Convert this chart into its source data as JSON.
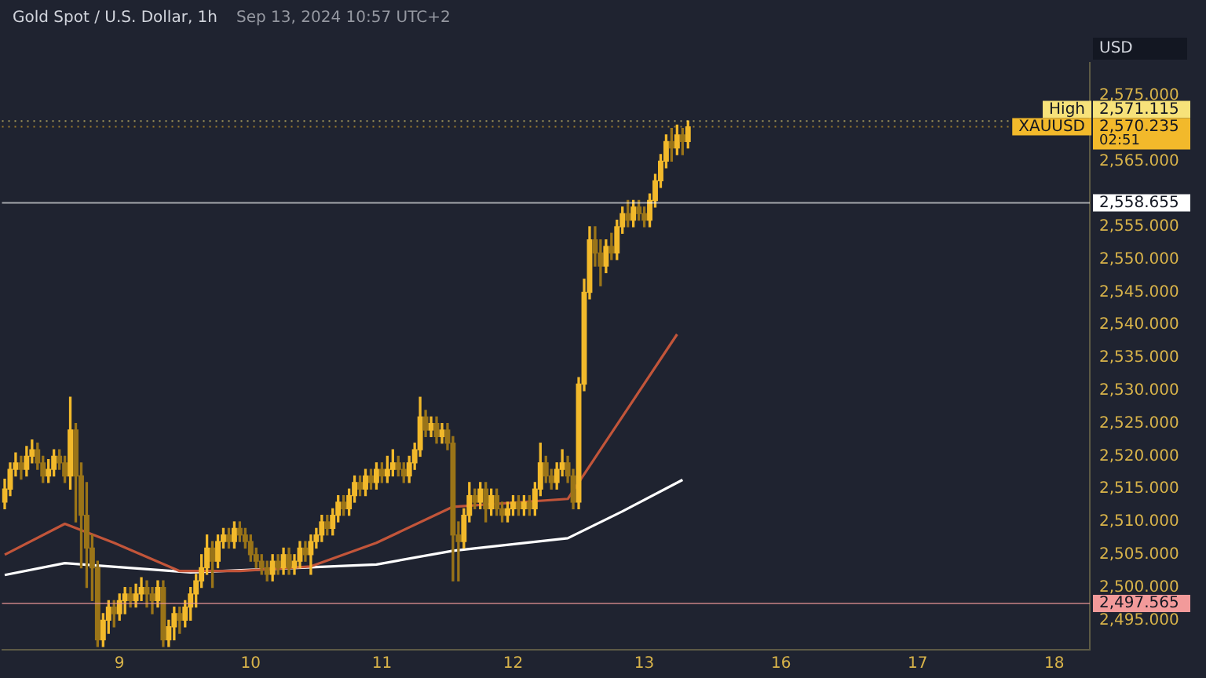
{
  "chart_data": {
    "type": "candlestick",
    "title": "Gold Spot / U.S. Dollar, 1h",
    "subtitle": "Sep 13, 2024 10:57 UTC+2",
    "ylabel": "USD",
    "colors": [
      "#f2b92b",
      "#f2b92b",
      "#f2b92b",
      "#9a7418",
      "#f2b92b",
      "#f2b92b",
      "#9a7418",
      "#9a7418",
      "#f2b92b",
      "#f2b92b",
      "#9a7418",
      "#9a7418",
      "#f2b92b",
      "#9a7418",
      "#9a7418",
      "#9a7418",
      "#9a7418",
      "#9a7418",
      "#f2b92b",
      "#f2b92b",
      "#9a7418",
      "#f2b92b",
      "#f2b92b",
      "#9a7418",
      "#f2b92b",
      "#f2b92b",
      "#9a7418",
      "#9a7418",
      "#f2b92b",
      "#9a7418",
      "#f2b92b",
      "#f2b92b",
      "#9a7418",
      "#f2b92b",
      "#f2b92b",
      "#f2b92b",
      "#f2b92b",
      "#f2b92b",
      "#9a7418",
      "#f2b92b",
      "#f2b92b",
      "#9a7418",
      "#f2b92b",
      "#9a7418",
      "#9a7418",
      "#9a7418",
      "#9a7418",
      "#9a7418",
      "#9a7418",
      "#f2b92b",
      "#9a7418",
      "#f2b92b",
      "#9a7418",
      "#f2b92b",
      "#f2b92b",
      "#9a7418",
      "#f2b92b",
      "#f2b92b",
      "#f2b92b",
      "#9a7418",
      "#f2b92b",
      "#f2b92b",
      "#9a7418",
      "#f2b92b",
      "#f2b92b",
      "#9a7418",
      "#f2b92b",
      "#9a7418",
      "#f2b92b",
      "#9a7418",
      "#f2b92b",
      "#f2b92b",
      "#9a7418",
      "#9a7418",
      "#f2b92b",
      "#f2b92b",
      "#f2b92b",
      "#9a7418",
      "#f2b92b",
      "#9a7418",
      "#f2b92b",
      "#9a7418",
      "#9a7418",
      "#9a7418",
      "#f2b92b",
      "#f2b92b",
      "#9a7418",
      "#f2b92b",
      "#9a7418",
      "#f2b92b",
      "#9a7418",
      "#9a7418",
      "#f2b92b",
      "#f2b92b",
      "#9a7418",
      "#f2b92b",
      "#9a7418",
      "#f2b92b",
      "#f2b92b",
      "#9a7418",
      "#9a7418",
      "#f2b92b",
      "#f2b92b",
      "#9a7418",
      "#9a7418",
      "#f2b92b",
      "#f2b92b",
      "#f2b92b",
      "#9a7418",
      "#9a7418",
      "#f2b92b",
      "#9a7418",
      "#f2b92b",
      "#f2b92b",
      "#9a7418",
      "#f2b92b",
      "#9a7418",
      "#9a7418",
      "#f2b92b",
      "#f2b92b",
      "#f2b92b",
      "#f2b92b",
      "#9a7418",
      "#f2b92b",
      "#9a7418",
      "#f2b92b",
      null,
      null,
      null,
      null,
      null,
      null,
      null,
      null,
      null,
      null,
      null,
      null,
      null,
      null,
      null,
      null,
      null,
      null,
      null,
      null,
      null,
      null,
      null,
      null,
      null,
      null,
      null,
      null,
      null,
      null,
      null,
      null,
      null,
      null,
      null,
      null,
      null,
      null,
      null,
      null,
      null,
      null,
      null,
      null,
      null,
      null,
      null,
      null,
      null,
      null,
      null,
      null,
      null,
      null,
      null,
      null,
      null,
      null,
      null,
      null,
      null,
      null,
      null,
      null,
      null,
      null,
      null,
      null,
      null,
      null,
      null,
      null,
      null
    ],
    "categories": [
      null,
      null,
      null,
      null,
      null,
      null,
      null,
      null,
      null,
      null,
      null,
      null,
      null,
      null,
      null,
      null,
      null,
      null,
      null,
      null,
      null,
      "9",
      null,
      null,
      null,
      null,
      null,
      null,
      null,
      null,
      null,
      null,
      null,
      null,
      null,
      null,
      null,
      null,
      null,
      null,
      null,
      null,
      null,
      null,
      null,
      "10",
      null,
      null,
      null,
      null,
      null,
      null,
      null,
      null,
      null,
      null,
      null,
      null,
      null,
      null,
      null,
      null,
      null,
      null,
      null,
      null,
      null,
      null,
      null,
      "11",
      null,
      null,
      null,
      null,
      null,
      null,
      null,
      null,
      null,
      null,
      null,
      null,
      null,
      null,
      null,
      null,
      null,
      null,
      null,
      null,
      null,
      null,
      null,
      "12",
      null,
      null,
      null,
      null,
      null,
      null,
      null,
      null,
      null,
      null,
      null,
      null,
      null,
      null,
      null,
      null,
      null,
      null,
      null,
      null,
      null,
      null,
      null,
      "13",
      null,
      null,
      null,
      null,
      null,
      null,
      null,
      null,
      null,
      null,
      null,
      null,
      null,
      null,
      null,
      null,
      null,
      null,
      null,
      null,
      null,
      null,
      null,
      null,
      "16",
      null,
      null,
      null,
      null,
      null,
      null,
      null,
      null,
      null,
      null,
      null,
      null,
      null,
      null,
      null,
      null,
      null,
      null,
      null,
      null,
      null,
      null,
      null,
      null,
      "17",
      null,
      null,
      null,
      null,
      null,
      null,
      null,
      null,
      null,
      null,
      null,
      null,
      null,
      null,
      null,
      null,
      null,
      null,
      null,
      null,
      null,
      null,
      null,
      null,
      "18",
      null,
      null,
      null,
      null,
      null,
      null
    ],
    "ohlc": [
      [
        2513,
        2516.5,
        2512,
        2515
      ],
      [
        2515,
        2519,
        2514,
        2518
      ],
      [
        2518,
        2520.5,
        2517,
        2519
      ],
      [
        2519,
        2520,
        2516.5,
        2518
      ],
      [
        2518,
        2521.5,
        2517,
        2520
      ],
      [
        2520,
        2522.5,
        2519,
        2521
      ],
      [
        2521,
        2522,
        2518,
        2519
      ],
      [
        2519,
        2520,
        2516,
        2517
      ],
      [
        2517,
        2519.5,
        2516,
        2518
      ],
      [
        2518,
        2521,
        2517,
        2520
      ],
      [
        2520,
        2521,
        2518,
        2519
      ],
      [
        2519,
        2520,
        2516,
        2517
      ],
      [
        2517,
        2529,
        2515,
        2524
      ],
      [
        2524,
        2525,
        2510,
        2517
      ],
      [
        2517,
        2519,
        2503,
        2511
      ],
      [
        2511,
        2516,
        2500,
        2506
      ],
      [
        2506,
        2508,
        2498,
        2503
      ],
      [
        2503,
        2504,
        2491,
        2492
      ],
      [
        2492,
        2496,
        2491,
        2495
      ],
      [
        2495,
        2498,
        2493,
        2497
      ],
      [
        2497,
        2498,
        2494,
        2496
      ],
      [
        2496,
        2499,
        2495,
        2498
      ],
      [
        2498,
        2500,
        2496,
        2499
      ],
      [
        2499,
        2500,
        2497,
        2498
      ],
      [
        2498,
        2500.5,
        2497,
        2499
      ],
      [
        2499,
        2501.5,
        2498,
        2500
      ],
      [
        2500,
        2501,
        2497,
        2499
      ],
      [
        2499,
        2500,
        2496,
        2498
      ],
      [
        2498,
        2501,
        2497,
        2500
      ],
      [
        2500,
        2501,
        2491,
        2492
      ],
      [
        2492,
        2495,
        2491,
        2494
      ],
      [
        2494,
        2497,
        2492,
        2496
      ],
      [
        2496,
        2497,
        2493,
        2495
      ],
      [
        2495,
        2498,
        2494,
        2497
      ],
      [
        2497,
        2500,
        2495,
        2499
      ],
      [
        2499,
        2502,
        2497,
        2501
      ],
      [
        2501,
        2505,
        2500,
        2503
      ],
      [
        2503,
        2508,
        2502,
        2506
      ],
      [
        2506,
        2507,
        2500,
        2504
      ],
      [
        2504,
        2508,
        2503,
        2507
      ],
      [
        2507,
        2509,
        2506,
        2508
      ],
      [
        2508,
        2509,
        2506,
        2507
      ],
      [
        2507,
        2510,
        2506,
        2509
      ],
      [
        2509,
        2510,
        2507,
        2508
      ],
      [
        2508,
        2509,
        2506,
        2507
      ],
      [
        2507,
        2508,
        2504,
        2505
      ],
      [
        2505,
        2506,
        2503,
        2504
      ],
      [
        2504,
        2505,
        2502,
        2503
      ],
      [
        2503,
        2504,
        2501,
        2502
      ],
      [
        2502,
        2505,
        2501,
        2504
      ],
      [
        2504,
        2505,
        2502,
        2503
      ],
      [
        2503,
        2506,
        2502,
        2505
      ],
      [
        2505,
        2506,
        2502,
        2503
      ],
      [
        2503,
        2505,
        2502,
        2504
      ],
      [
        2504,
        2507,
        2503,
        2506
      ],
      [
        2506,
        2507,
        2504,
        2505
      ],
      [
        2505,
        2508,
        2502,
        2507
      ],
      [
        2507,
        2509,
        2506,
        2508
      ],
      [
        2508,
        2511,
        2507,
        2510
      ],
      [
        2510,
        2511,
        2508,
        2509
      ],
      [
        2509,
        2512,
        2508,
        2511
      ],
      [
        2511,
        2514,
        2510,
        2513
      ],
      [
        2513,
        2514,
        2511,
        2512
      ],
      [
        2512,
        2515,
        2511,
        2514
      ],
      [
        2514,
        2517,
        2513,
        2516
      ],
      [
        2516,
        2517,
        2514,
        2515
      ],
      [
        2515,
        2518,
        2514,
        2517
      ],
      [
        2517,
        2518,
        2515,
        2516
      ],
      [
        2516,
        2519,
        2515,
        2518
      ],
      [
        2518,
        2519,
        2516,
        2517
      ],
      [
        2517,
        2520,
        2516,
        2518
      ],
      [
        2518,
        2521,
        2517,
        2519
      ],
      [
        2519,
        2520,
        2517,
        2518
      ],
      [
        2518,
        2519,
        2516,
        2517
      ],
      [
        2517,
        2520,
        2516,
        2519
      ],
      [
        2519,
        2522,
        2518,
        2521
      ],
      [
        2521,
        2529,
        2520,
        2526
      ],
      [
        2526,
        2527,
        2523,
        2524
      ],
      [
        2524,
        2526,
        2523,
        2525
      ],
      [
        2525,
        2526,
        2522,
        2523
      ],
      [
        2523,
        2525,
        2522,
        2524
      ],
      [
        2524,
        2525,
        2521,
        2522
      ],
      [
        2522,
        2523,
        2501,
        2508
      ],
      [
        2508,
        2510,
        2501,
        2507
      ],
      [
        2507,
        2512,
        2506,
        2511
      ],
      [
        2511,
        2516,
        2510,
        2514
      ],
      [
        2514,
        2515,
        2512,
        2513
      ],
      [
        2513,
        2516,
        2512,
        2515
      ],
      [
        2515,
        2516,
        2510,
        2512
      ],
      [
        2512,
        2515,
        2511,
        2514
      ],
      [
        2514,
        2515,
        2511,
        2512
      ],
      [
        2512,
        2513,
        2510,
        2511
      ],
      [
        2511,
        2513,
        2510,
        2512
      ],
      [
        2512,
        2514,
        2511,
        2513
      ],
      [
        2513,
        2514,
        2511,
        2512
      ],
      [
        2512,
        2514,
        2511,
        2513
      ],
      [
        2513,
        2514,
        2511,
        2512
      ],
      [
        2512,
        2516,
        2511,
        2515
      ],
      [
        2515,
        2522,
        2514,
        2519
      ],
      [
        2519,
        2520,
        2516,
        2517
      ],
      [
        2517,
        2518,
        2515,
        2516
      ],
      [
        2516,
        2519,
        2515,
        2518
      ],
      [
        2518,
        2521,
        2517,
        2519
      ],
      [
        2519,
        2520,
        2516,
        2517
      ],
      [
        2517,
        2518,
        2512,
        2513
      ],
      [
        2513,
        2532,
        2512,
        2531
      ],
      [
        2531,
        2547,
        2530,
        2545
      ],
      [
        2545,
        2555,
        2544,
        2553
      ],
      [
        2553,
        2555,
        2549,
        2551
      ],
      [
        2551,
        2553,
        2546,
        2549
      ],
      [
        2549,
        2553,
        2548,
        2552
      ],
      [
        2552,
        2554,
        2550,
        2551
      ],
      [
        2551,
        2556,
        2550,
        2555
      ],
      [
        2555,
        2558,
        2554,
        2557
      ],
      [
        2557,
        2559,
        2555,
        2556
      ],
      [
        2556,
        2559,
        2555,
        2558
      ],
      [
        2558,
        2559,
        2556,
        2557
      ],
      [
        2557,
        2558,
        2555,
        2556
      ],
      [
        2556,
        2560,
        2555,
        2559
      ],
      [
        2559,
        2563,
        2558,
        2562
      ],
      [
        2562,
        2566,
        2561,
        2565
      ],
      [
        2565,
        2569,
        2564,
        2568
      ],
      [
        2568,
        2570,
        2565,
        2567
      ],
      [
        2567,
        2570.5,
        2566,
        2569
      ],
      [
        2569,
        2570,
        2566,
        2568
      ],
      [
        2568,
        2571.115,
        2567,
        2570.235
      ],
      null,
      null,
      null,
      null,
      null,
      null,
      null,
      null,
      null,
      null,
      null,
      null,
      null,
      null,
      null,
      null,
      null,
      null,
      null,
      null,
      null,
      null,
      null,
      null,
      null,
      null,
      null,
      null,
      null,
      null,
      null,
      null,
      null,
      null,
      null,
      null,
      null,
      null,
      null,
      null,
      null,
      null,
      null,
      null,
      null,
      null,
      null,
      null,
      null,
      null,
      null,
      null,
      null,
      null,
      null,
      null,
      null,
      null,
      null,
      null,
      null,
      null,
      null,
      null,
      null,
      null,
      null,
      null,
      null,
      null,
      null,
      null,
      null
    ],
    "series": [
      {
        "type": "line",
        "color": "#c2553a",
        "values": [
          2505,
          null,
          null,
          null,
          null,
          null,
          null,
          null,
          null,
          null,
          null,
          2509.7,
          null,
          null,
          null,
          null,
          null,
          null,
          null,
          null,
          2506.8,
          null,
          null,
          null,
          null,
          null,
          null,
          null,
          null,
          null,
          null,
          null,
          2502.5,
          null,
          null,
          null,
          null,
          null,
          null,
          null,
          null,
          null,
          null,
          2502.5,
          null,
          null,
          null,
          null,
          null,
          null,
          null,
          null,
          null,
          null,
          null,
          null,
          2503.2,
          null,
          null,
          null,
          null,
          null,
          null,
          null,
          null,
          null,
          null,
          null,
          2506.8,
          null,
          null,
          null,
          null,
          null,
          null,
          null,
          null,
          null,
          null,
          null,
          null,
          null,
          2512.3,
          null,
          null,
          null,
          null,
          null,
          null,
          null,
          null,
          null,
          null,
          null,
          null,
          null,
          null,
          null,
          null,
          null,
          null,
          null,
          null,
          2513.5,
          null,
          null,
          null,
          null,
          null,
          null,
          null,
          null,
          null,
          null,
          null,
          null,
          null,
          null,
          null,
          null,
          null,
          null,
          null,
          2538.6,
          null,
          null,
          null,
          null,
          null,
          null,
          null,
          null,
          null,
          null,
          null,
          null,
          null,
          null,
          null,
          null,
          null,
          null,
          null,
          null,
          null,
          null,
          null,
          null,
          null,
          null,
          null,
          null,
          null,
          null,
          null,
          null,
          null,
          null,
          null,
          null,
          null,
          null,
          null,
          null,
          null,
          null,
          null,
          null,
          null,
          null,
          null,
          null,
          null,
          null,
          null,
          null,
          null,
          null,
          null,
          null,
          null,
          null,
          null,
          null,
          null,
          null,
          null,
          null,
          null,
          null,
          null,
          null,
          null,
          null,
          null,
          null,
          null,
          null,
          null
        ]
      },
      {
        "type": "line",
        "color": "#ffffff",
        "values": [
          2501.9,
          null,
          null,
          null,
          null,
          null,
          null,
          null,
          null,
          null,
          null,
          2503.7,
          null,
          null,
          null,
          null,
          null,
          null,
          null,
          null,
          null,
          null,
          null,
          null,
          null,
          null,
          null,
          null,
          null,
          null,
          null,
          null,
          null,
          null,
          2502.3,
          null,
          null,
          null,
          null,
          null,
          null,
          null,
          null,
          null,
          null,
          null,
          null,
          null,
          null,
          null,
          null,
          null,
          null,
          null,
          null,
          null,
          null,
          null,
          null,
          null,
          null,
          null,
          null,
          null,
          null,
          null,
          null,
          null,
          2503.5,
          null,
          null,
          null,
          null,
          null,
          null,
          null,
          null,
          null,
          null,
          null,
          null,
          null,
          2505.6,
          null,
          null,
          null,
          null,
          null,
          null,
          null,
          null,
          null,
          null,
          null,
          null,
          null,
          null,
          null,
          null,
          null,
          null,
          null,
          null,
          2507.5,
          null,
          null,
          null,
          null,
          null,
          null,
          null,
          null,
          null,
          2511.6,
          null,
          null,
          null,
          null,
          null,
          null,
          null,
          null,
          null,
          null,
          2516.4,
          null,
          null,
          null,
          null,
          null,
          null,
          null,
          null,
          null,
          null,
          null,
          null,
          null,
          null,
          null,
          null,
          null,
          null,
          null,
          null,
          null,
          null,
          null,
          null,
          null,
          null,
          null,
          null,
          null,
          null,
          null,
          null,
          null,
          null,
          null,
          null,
          null,
          null,
          null,
          null,
          null,
          null,
          null,
          null,
          null,
          null,
          null,
          null,
          null,
          null,
          null,
          null,
          null,
          null,
          null,
          null,
          null,
          null,
          null,
          null,
          null,
          null,
          null,
          null,
          null,
          null,
          null,
          null,
          null,
          null,
          null,
          null,
          null,
          null
        ]
      }
    ],
    "ylim": [
      2490.5,
      2580
    ],
    "yticks": [
      {
        "value": 2495,
        "label": "2,495.000"
      },
      {
        "value": 2500,
        "label": "2,500.000"
      },
      {
        "value": 2505,
        "label": "2,505.000"
      },
      {
        "value": 2510,
        "label": "2,510.000"
      },
      {
        "value": 2515,
        "label": "2,515.000"
      },
      {
        "value": 2520,
        "label": "2,520.000"
      },
      {
        "value": 2525,
        "label": "2,525.000"
      },
      {
        "value": 2530,
        "label": "2,530.000"
      },
      {
        "value": 2535,
        "label": "2,535.000"
      },
      {
        "value": 2540,
        "label": "2,540.000"
      },
      {
        "value": 2545,
        "label": "2,545.000"
      },
      {
        "value": 2550,
        "label": "2,550.000"
      },
      {
        "value": 2555,
        "label": "2,555.000"
      },
      {
        "value": 2565,
        "label": "2,565.000"
      },
      {
        "value": 2575,
        "label": "2,575.000"
      }
    ],
    "ref_lines": [
      {
        "axis": "y",
        "value": 2571.115,
        "label": "2,571.115",
        "color": "#f7e27a",
        "line_style": "dotted"
      },
      {
        "axis": "y",
        "value": 2570.235,
        "label": "2,570.235",
        "color": "#f2b92b",
        "line_style": "dotted"
      },
      {
        "axis": "y",
        "value": 2558.655,
        "label": "2,558.655",
        "color": "#ffffff",
        "line_style": "solid"
      },
      {
        "axis": "y",
        "value": 2497.565,
        "label": "2,497.565",
        "color": "#f29a9a",
        "line_style": "solid"
      }
    ],
    "annotations": [
      "High",
      "XAUUSD",
      "02:51"
    ],
    "grid": false,
    "legend": false
  }
}
